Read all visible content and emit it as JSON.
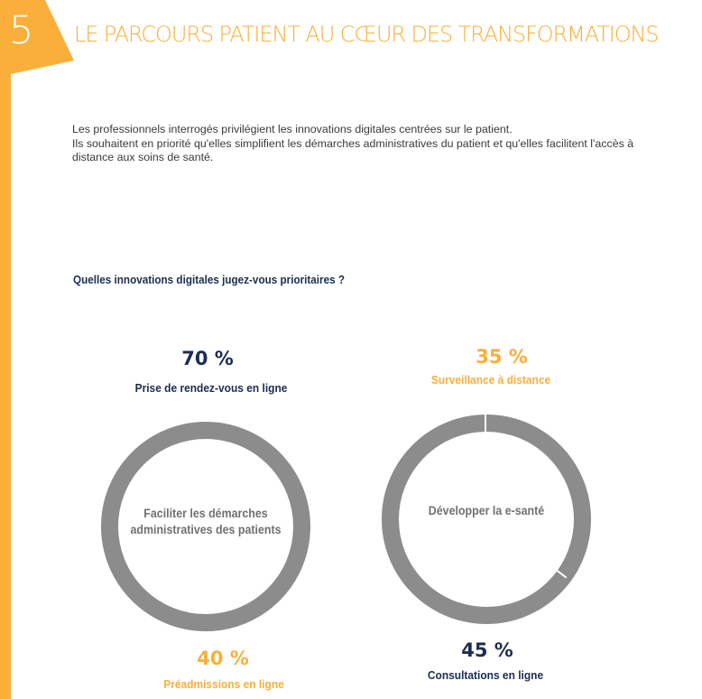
{
  "section": {
    "number": "5",
    "title": "LE PARCOURS PATIENT AU CŒUR DES TRANSFORMATIONS"
  },
  "intro": {
    "line1": "Les professionnels interrogés privilégient les innovations digitales centrées sur le patient.",
    "line2": "Ils souhaitent en priorité qu'elles simplifient les démarches administratives du patient et qu'elles facilitent l'accès à distance aux soins de santé."
  },
  "question": "Quelles innovations digitales jugez-vous prioritaires ?",
  "rings": {
    "left": {
      "center_text": "Faciliter les démarches administratives des patients"
    },
    "right": {
      "center_text": "Développer la e-santé"
    }
  },
  "stats": {
    "rendezvous": {
      "value": "70 %",
      "label": "Prise de rendez-vous en ligne"
    },
    "surveillance": {
      "value": "35 %",
      "label": "Surveillance à distance"
    },
    "preadmissions": {
      "value": "40 %",
      "label": "Préadmissions en ligne"
    },
    "consultations": {
      "value": "45 %",
      "label": "Consultations en ligne"
    }
  },
  "colors": {
    "accent_orange": "#F9AF3A",
    "navy": "#1B2D52",
    "ring_gray": "#8C8C8D",
    "ring_text_gray": "#707070"
  }
}
